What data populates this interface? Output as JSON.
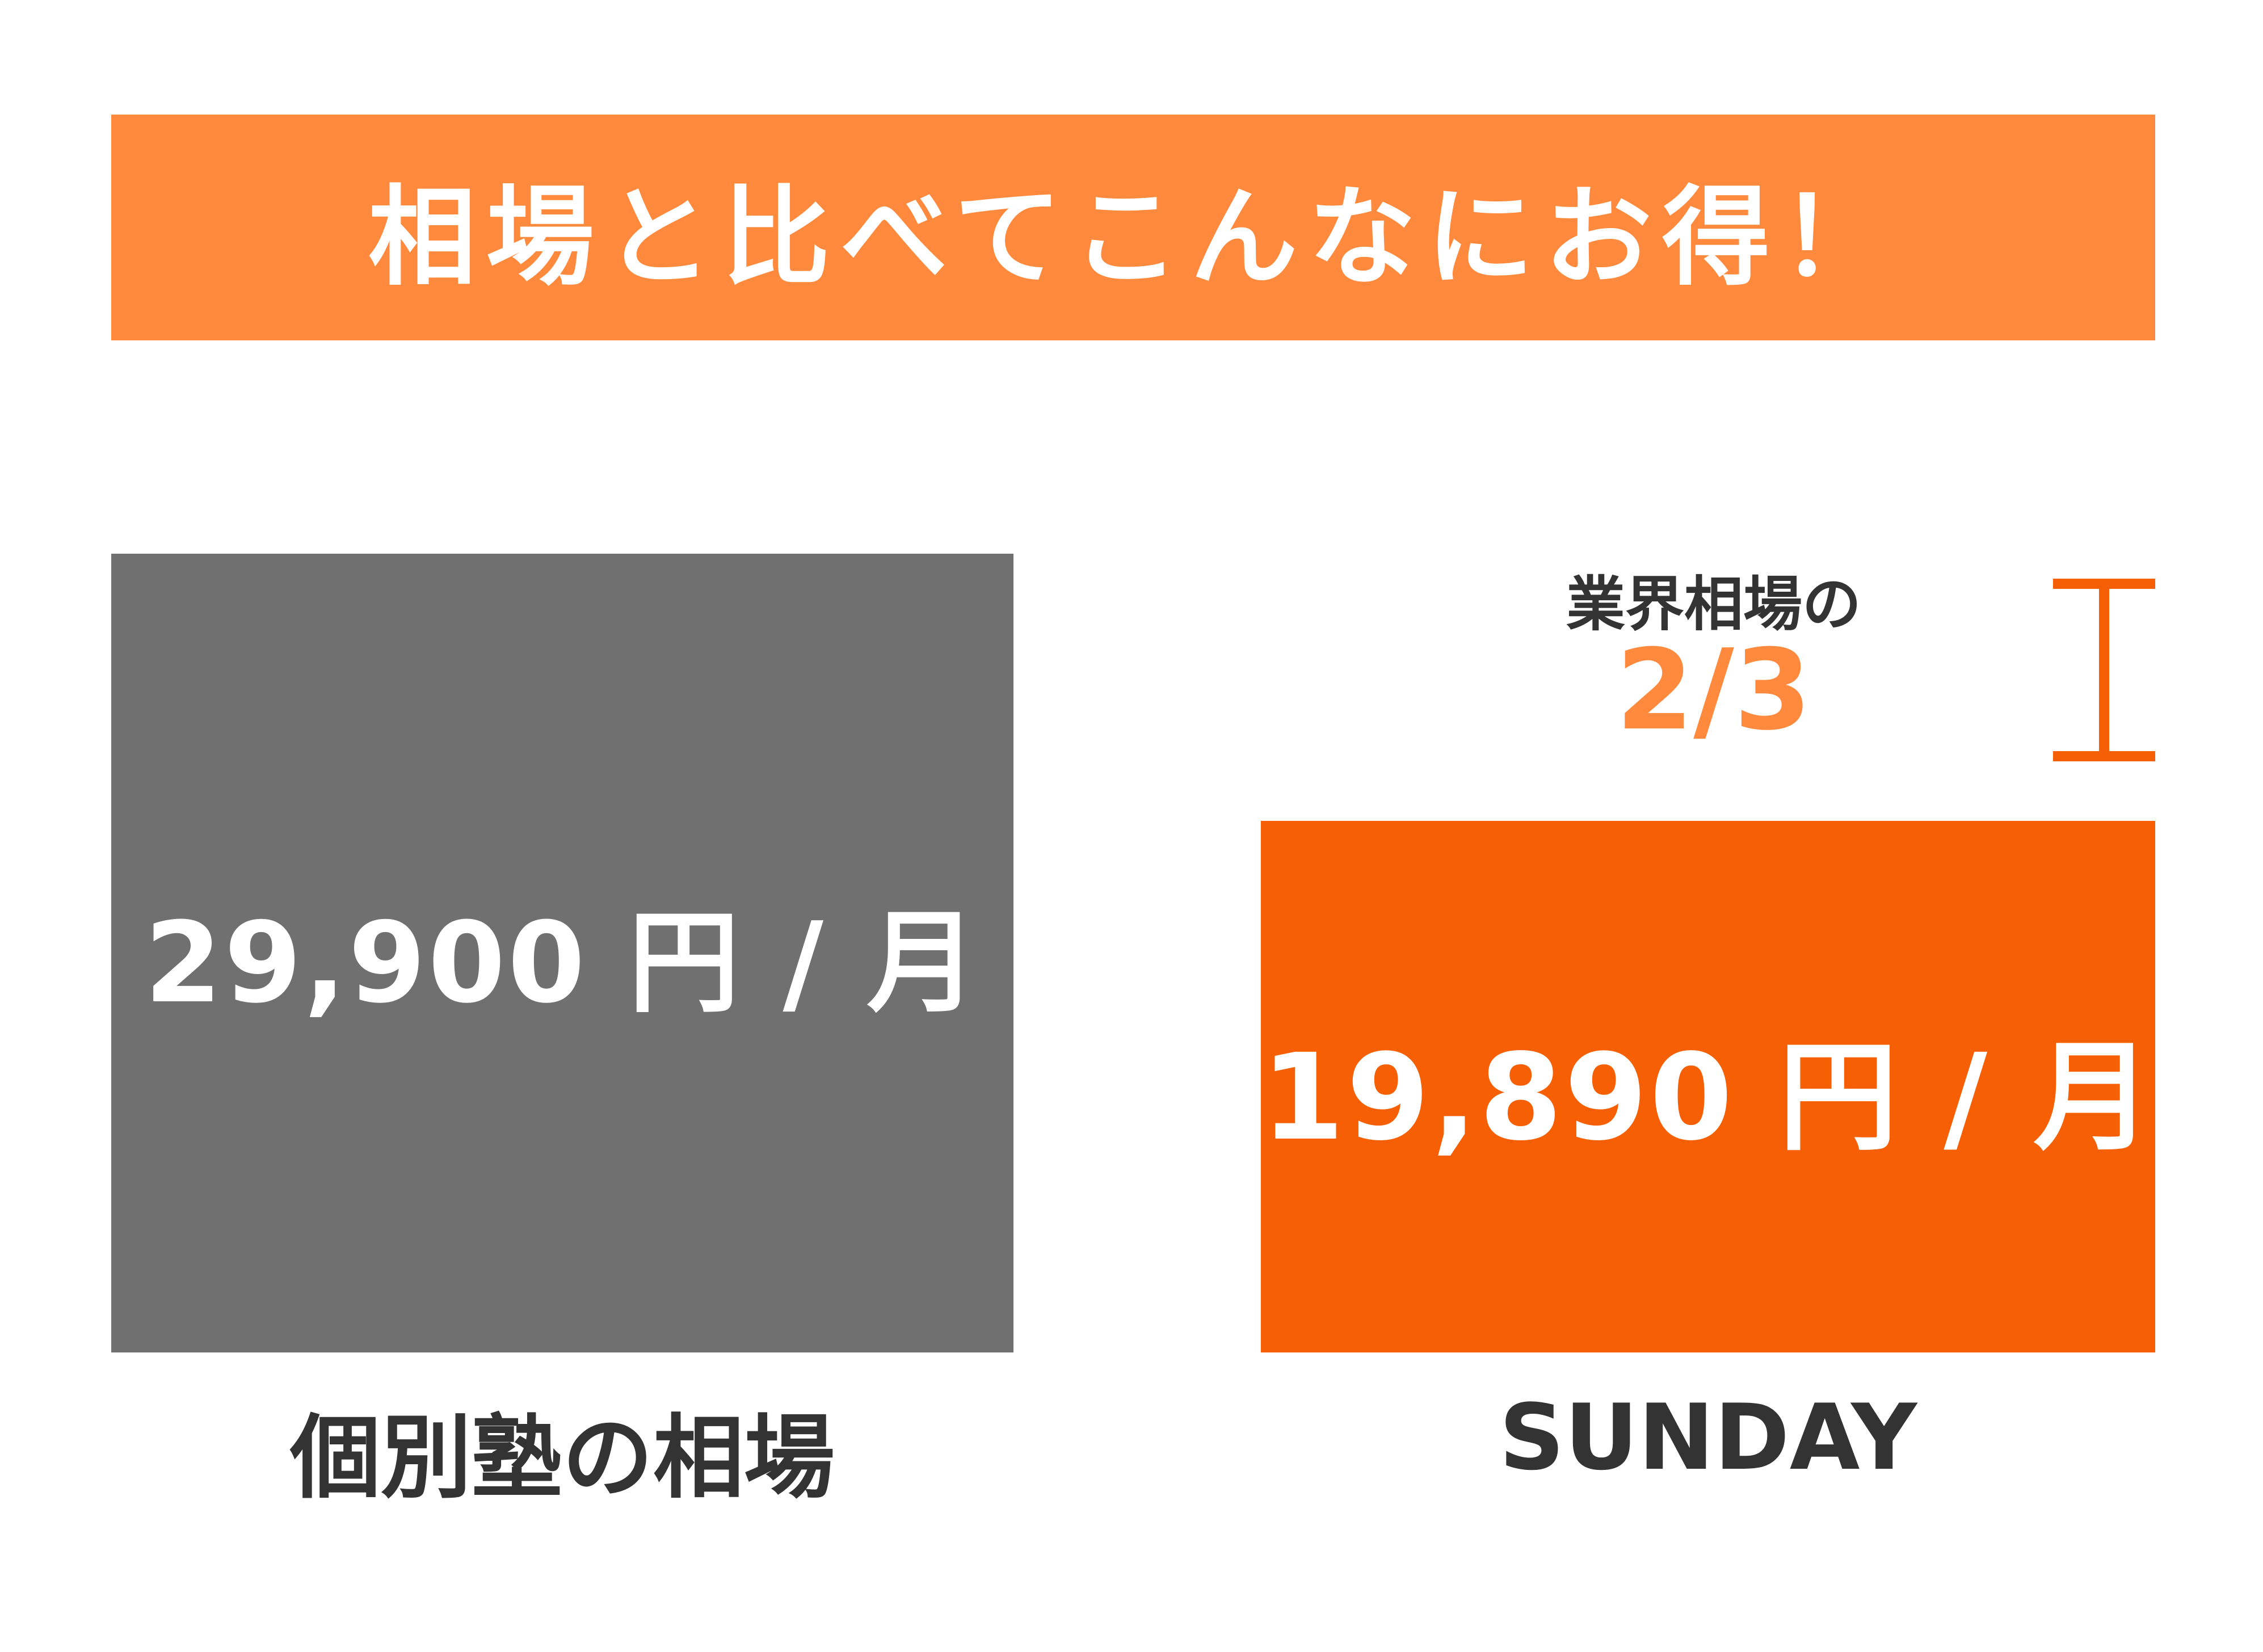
{
  "title": "相場と比べてこんなにお得！",
  "colors": {
    "banner": "#FF8A3D",
    "market_bar": "#707070",
    "sunday_bar": "#F75F04",
    "ratio_text": "#FF8A3D",
    "bracket": "#F75F04",
    "label_text": "#333333"
  },
  "chart_data": {
    "type": "bar",
    "title": "相場と比べてこんなにお得！",
    "categories": [
      "個別塾の相場",
      "SUNDAY"
    ],
    "values": [
      29900,
      19890
    ],
    "value_labels": [
      "29,900 円 / 月",
      "19,890 円 / 月"
    ],
    "unit": "円 / 月",
    "annotation": {
      "text": "業界相場の",
      "ratio": "2/3"
    }
  }
}
